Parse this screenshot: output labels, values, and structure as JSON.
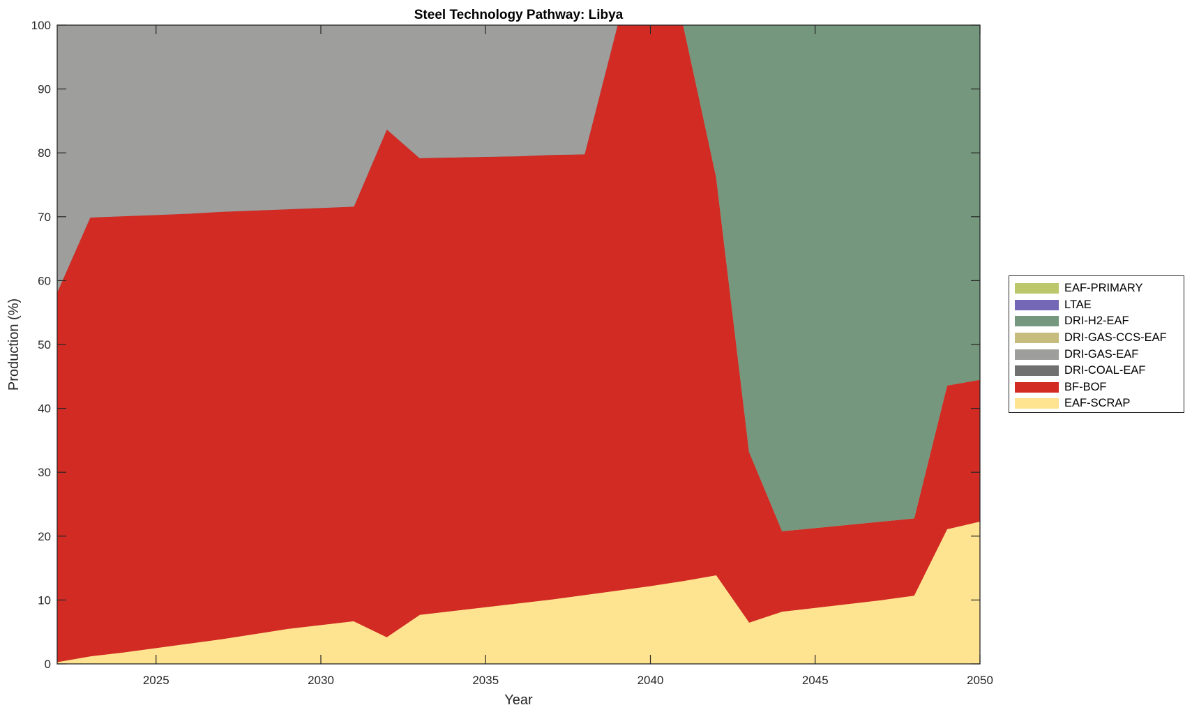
{
  "chart_data": {
    "type": "area",
    "stacked": true,
    "title": "Steel Technology Pathway: Libya",
    "xlabel": "Year",
    "ylabel": "Production (%)",
    "xlim": [
      2022,
      2050
    ],
    "ylim": [
      0,
      100
    ],
    "xticks": [
      2025,
      2030,
      2035,
      2040,
      2045,
      2050
    ],
    "yticks": [
      0,
      10,
      20,
      30,
      40,
      50,
      60,
      70,
      80,
      90,
      100
    ],
    "grid": false,
    "legend_placement": "outside-right",
    "x": [
      2022,
      2023,
      2024,
      2025,
      2026,
      2027,
      2028,
      2029,
      2030,
      2031,
      2032,
      2033,
      2034,
      2035,
      2036,
      2037,
      2038,
      2039,
      2040,
      2041,
      2042,
      2043,
      2044,
      2045,
      2046,
      2047,
      2048,
      2049,
      2050
    ],
    "series": [
      {
        "name": "EAF-SCRAP",
        "color": "#FEE391",
        "values": [
          0.3,
          1.2,
          1.8,
          2.5,
          3.2,
          3.9,
          4.7,
          5.5,
          6.1,
          6.7,
          4.2,
          7.7,
          8.3,
          8.9,
          9.5,
          10.1,
          10.8,
          11.5,
          12.2,
          13.0,
          13.9,
          6.5,
          8.2,
          8.8,
          9.4,
          10.0,
          10.7,
          21.1,
          22.3
        ]
      },
      {
        "name": "BF-BOF",
        "color": "#D12B24",
        "values": [
          57.9,
          68.7,
          68.3,
          67.8,
          67.3,
          66.9,
          66.3,
          65.7,
          65.3,
          64.9,
          79.5,
          71.5,
          71.0,
          70.5,
          70.0,
          69.6,
          69.0,
          88.5,
          87.8,
          87.0,
          62.3,
          26.7,
          12.6,
          12.5,
          12.4,
          12.3,
          12.1,
          22.5,
          22.2
        ]
      },
      {
        "name": "DRI-COAL-EAF",
        "color": "#707070",
        "values": [
          0,
          0,
          0,
          0,
          0,
          0,
          0,
          0,
          0,
          0,
          0,
          0,
          0,
          0,
          0,
          0,
          0,
          0,
          0,
          0,
          0,
          0,
          0,
          0,
          0,
          0,
          0,
          0,
          0
        ]
      },
      {
        "name": "DRI-GAS-EAF",
        "color": "#9E9E9C",
        "values": [
          41.8,
          30.1,
          29.9,
          29.7,
          29.5,
          29.2,
          29.0,
          28.8,
          28.6,
          28.4,
          16.3,
          20.8,
          20.7,
          20.6,
          20.5,
          20.3,
          20.2,
          0,
          0,
          0,
          0,
          0,
          0,
          0,
          0,
          0,
          0,
          0,
          0
        ]
      },
      {
        "name": "DRI-GAS-CCS-EAF",
        "color": "#C6BC7E",
        "values": [
          0,
          0,
          0,
          0,
          0,
          0,
          0,
          0,
          0,
          0,
          0,
          0,
          0,
          0,
          0,
          0,
          0,
          0,
          0,
          0,
          0,
          0,
          0,
          0,
          0,
          0,
          0,
          0,
          0
        ]
      },
      {
        "name": "DRI-H2-EAF",
        "color": "#74977E",
        "values": [
          0,
          0,
          0,
          0,
          0,
          0,
          0,
          0,
          0,
          0,
          0,
          0,
          0,
          0,
          0,
          0,
          0,
          0,
          0,
          0,
          23.8,
          66.8,
          79.2,
          78.7,
          78.2,
          77.7,
          77.2,
          56.4,
          55.5
        ]
      },
      {
        "name": "LTAE",
        "color": "#7468B6",
        "values": [
          0,
          0,
          0,
          0,
          0,
          0,
          0,
          0,
          0,
          0,
          0,
          0,
          0,
          0,
          0,
          0,
          0,
          0,
          0,
          0,
          0,
          0,
          0,
          0,
          0,
          0,
          0,
          0,
          0
        ]
      },
      {
        "name": "EAF-PRIMARY",
        "color": "#BCC66A",
        "values": [
          0,
          0,
          0,
          0,
          0,
          0,
          0,
          0,
          0,
          0,
          0,
          0,
          0,
          0,
          0,
          0,
          0,
          0,
          0,
          0,
          0,
          0,
          0,
          0,
          0,
          0,
          0,
          0,
          0
        ]
      }
    ]
  }
}
